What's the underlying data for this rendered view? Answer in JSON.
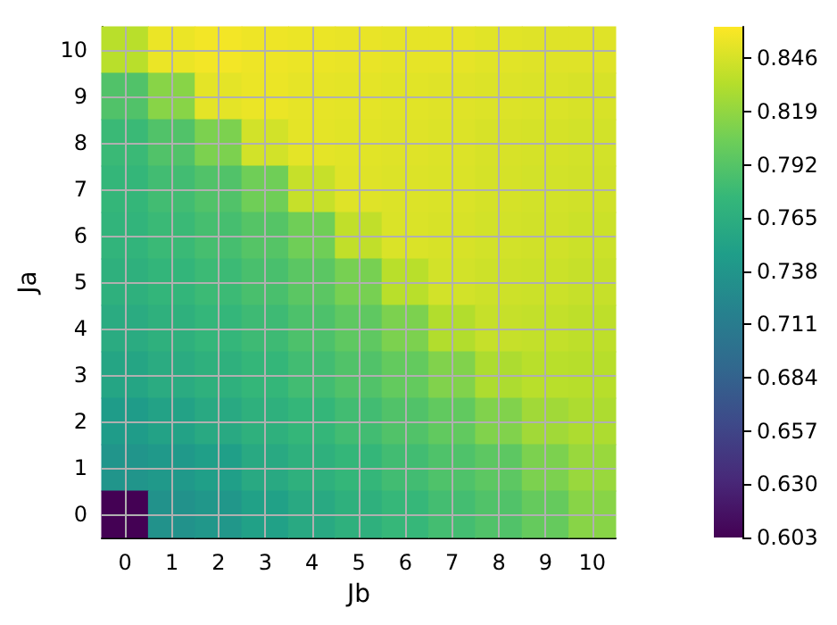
{
  "chart_data": {
    "type": "heatmap",
    "xlabel": "Jb",
    "ylabel": "Ja",
    "grid": true,
    "categories": [
      "0",
      "1",
      "2",
      "3",
      "4",
      "5",
      "6",
      "7",
      "8",
      "9",
      "10"
    ],
    "y_categories": [
      "10",
      "9",
      "8",
      "7",
      "6",
      "5",
      "4",
      "3",
      "2",
      "1",
      "0"
    ],
    "cells": [
      [
        0.835,
        0.855,
        0.858,
        0.856,
        0.855,
        0.854,
        0.853,
        0.853,
        0.851,
        0.85,
        0.85
      ],
      [
        0.79,
        0.815,
        0.852,
        0.855,
        0.853,
        0.852,
        0.851,
        0.85,
        0.849,
        0.848,
        0.847
      ],
      [
        0.778,
        0.79,
        0.81,
        0.845,
        0.852,
        0.851,
        0.85,
        0.849,
        0.847,
        0.846,
        0.845
      ],
      [
        0.775,
        0.782,
        0.79,
        0.805,
        0.84,
        0.85,
        0.849,
        0.848,
        0.846,
        0.845,
        0.844
      ],
      [
        0.772,
        0.778,
        0.784,
        0.792,
        0.805,
        0.838,
        0.848,
        0.847,
        0.845,
        0.844,
        0.842
      ],
      [
        0.768,
        0.773,
        0.779,
        0.786,
        0.795,
        0.808,
        0.835,
        0.845,
        0.843,
        0.842,
        0.84
      ],
      [
        0.762,
        0.768,
        0.774,
        0.78,
        0.788,
        0.797,
        0.81,
        0.832,
        0.84,
        0.839,
        0.837
      ],
      [
        0.755,
        0.762,
        0.768,
        0.775,
        0.782,
        0.79,
        0.799,
        0.812,
        0.83,
        0.835,
        0.834
      ],
      [
        0.745,
        0.752,
        0.76,
        0.768,
        0.775,
        0.782,
        0.79,
        0.798,
        0.812,
        0.825,
        0.83
      ],
      [
        0.738,
        0.742,
        0.748,
        0.76,
        0.768,
        0.775,
        0.782,
        0.789,
        0.796,
        0.81,
        0.822
      ],
      [
        0.603,
        0.735,
        0.74,
        0.75,
        0.76,
        0.768,
        0.776,
        0.783,
        0.79,
        0.8,
        0.815
      ]
    ],
    "clim": [
      0.603,
      0.862
    ],
    "cticks": [
      0.603,
      {
        "value": 0.63,
        "label": "0.630"
      },
      0.657,
      0.684,
      0.711,
      0.738,
      0.765,
      0.792,
      0.819,
      0.846
    ]
  }
}
